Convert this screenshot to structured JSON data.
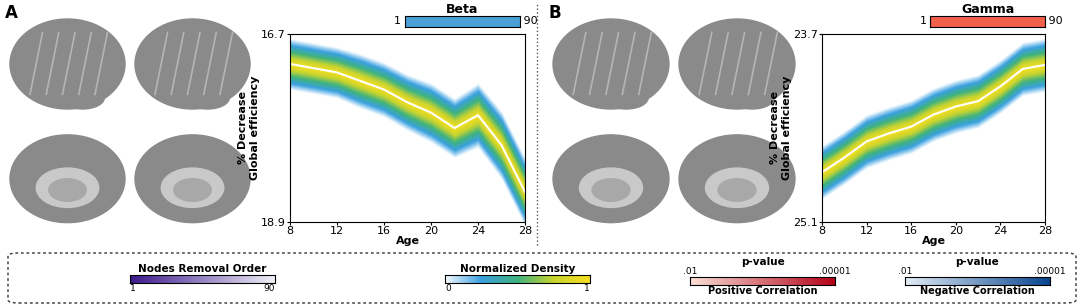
{
  "chart_data": [
    {
      "type": "density_line",
      "panel_label": "A",
      "title": "Beta",
      "strip": {
        "xlim": [
          1,
          90
        ],
        "xticks": [
          1,
          90
        ],
        "color": "#4a9fd4"
      },
      "xlabel": "Age",
      "ylabel": "% Decrease\nGlobal efficiency",
      "x": [
        8,
        10,
        12,
        14,
        16,
        18,
        20,
        22,
        24,
        26,
        28
      ],
      "values": [
        17.05,
        17.1,
        17.15,
        17.25,
        17.35,
        17.5,
        17.62,
        17.8,
        17.65,
        18.0,
        18.55
      ],
      "band_min": [
        16.75,
        16.8,
        16.85,
        16.93,
        17.03,
        17.17,
        17.27,
        17.45,
        17.27,
        17.6,
        18.15
      ],
      "band_max": [
        17.35,
        17.4,
        17.45,
        17.57,
        17.67,
        17.83,
        17.97,
        18.15,
        18.03,
        18.4,
        18.95
      ],
      "xlim": [
        8,
        28
      ],
      "xticks": [
        8,
        12,
        16,
        20,
        24,
        28
      ],
      "ylim": [
        18.9,
        16.7
      ],
      "yticks": [
        16.7,
        18.9
      ],
      "color": "#ffffff",
      "grid": false
    },
    {
      "type": "density_line",
      "panel_label": "B",
      "title": "Gamma",
      "strip": {
        "xlim": [
          1,
          90
        ],
        "xticks": [
          1,
          90
        ],
        "color": "#f0604a"
      },
      "xlabel": "Age",
      "ylabel": "% Decrease\nGlobal efficiency",
      "x": [
        8,
        10,
        12,
        14,
        16,
        18,
        20,
        22,
        24,
        26,
        28
      ],
      "values": [
        24.73,
        24.62,
        24.5,
        24.44,
        24.39,
        24.3,
        24.24,
        24.2,
        24.09,
        23.96,
        23.93
      ],
      "band_min": [
        24.53,
        24.42,
        24.3,
        24.24,
        24.19,
        24.1,
        24.04,
        24.0,
        23.89,
        23.76,
        23.73
      ],
      "band_max": [
        24.93,
        24.82,
        24.7,
        24.64,
        24.59,
        24.5,
        24.44,
        24.4,
        24.29,
        24.16,
        24.13
      ],
      "xlim": [
        8,
        28
      ],
      "xticks": [
        8,
        12,
        16,
        20,
        24,
        28
      ],
      "ylim": [
        25.1,
        23.7
      ],
      "yticks": [
        23.7,
        25.1
      ],
      "color": "#ffffff",
      "grid": false
    }
  ],
  "colorbars": [
    {
      "title": "Nodes Removal Order",
      "xlim": [
        1,
        90
      ],
      "xticks": [
        1,
        90
      ],
      "colors": [
        "#3c1a8c",
        "#f2f0f8"
      ]
    },
    {
      "title": "Normalized Density",
      "xlim": [
        0,
        1
      ],
      "xticks": [
        0,
        1
      ],
      "colors": [
        "#f4fbff",
        "#3aa0e0",
        "#3fb37f",
        "#c8d42f",
        "#f9e021"
      ]
    },
    {
      "title": "p-value",
      "label": "Positive Correlation",
      "xlim": [
        0.01,
        1e-05
      ],
      "xticks": [
        {
          "value": 0.01,
          "label": ".01"
        },
        {
          "value": 1e-05,
          "label": ".00001"
        }
      ],
      "colors": [
        "#fbe0d6",
        "#b30017"
      ]
    },
    {
      "title": "p-value",
      "label": "Negative Correlation",
      "xlim": [
        0.01,
        1e-05
      ],
      "xticks": [
        {
          "value": 0.01,
          "label": ".01"
        },
        {
          "value": 1e-05,
          "label": ".00001"
        }
      ],
      "colors": [
        "#e3eef7",
        "#08448f"
      ]
    }
  ]
}
